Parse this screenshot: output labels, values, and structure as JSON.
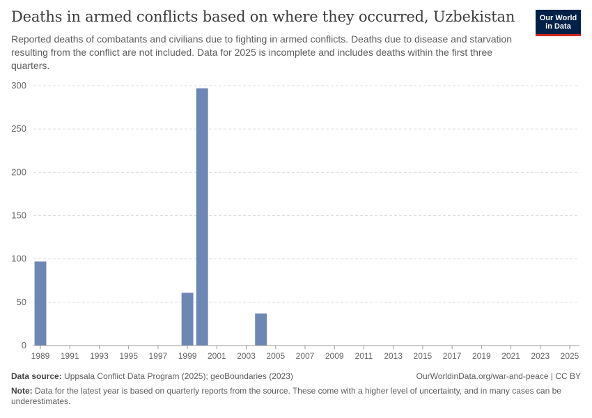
{
  "header": {
    "title": "Deaths in armed conflicts based on where they occurred, Uzbekistan",
    "subtitle": "Reported deaths of combatants and civilians due to fighting in armed conflicts. Deaths due to disease and starvation resulting from the conflict are not included. Data for 2025 is incomplete and includes deaths within the first three quarters."
  },
  "logo": {
    "line1": "Our World",
    "line2": "in Data"
  },
  "footer": {
    "source_label": "Data source:",
    "source_text": "Uppsala Conflict Data Program (2025); geoBoundaries (2023)",
    "url_text": "OurWorldinData.org/war-and-peace | CC BY",
    "note_label": "Note:",
    "note_text": "Data for the latest year is based on quarterly reports from the source. These come with a higher level of uncertainty, and in many cases can be underestimates."
  },
  "colors": {
    "bar": "#6d87b4",
    "grid": "#dddddd",
    "axis": "#999999"
  },
  "chart_data": {
    "type": "bar",
    "title": "Deaths in armed conflicts based on where they occurred, Uzbekistan",
    "xlabel": "",
    "ylabel": "",
    "ylim": [
      0,
      300
    ],
    "y_ticks": [
      0,
      50,
      100,
      150,
      200,
      250,
      300
    ],
    "x_tick_labels": [
      "1989",
      "1991",
      "1993",
      "1995",
      "1997",
      "1999",
      "2001",
      "2003",
      "2005",
      "2007",
      "2009",
      "2011",
      "2013",
      "2015",
      "2017",
      "2019",
      "2021",
      "2023",
      "2025"
    ],
    "categories": [
      "1989",
      "1990",
      "1991",
      "1992",
      "1993",
      "1994",
      "1995",
      "1996",
      "1997",
      "1998",
      "1999",
      "2000",
      "2001",
      "2002",
      "2003",
      "2004",
      "2005",
      "2006",
      "2007",
      "2008",
      "2009",
      "2010",
      "2011",
      "2012",
      "2013",
      "2014",
      "2015",
      "2016",
      "2017",
      "2018",
      "2019",
      "2020",
      "2021",
      "2022",
      "2023",
      "2024",
      "2025"
    ],
    "values": [
      97,
      0,
      0,
      0,
      0,
      0,
      0,
      0,
      0,
      0,
      61,
      297,
      0,
      0,
      0,
      37,
      0,
      0,
      0,
      0,
      0,
      0,
      0,
      0,
      0,
      0,
      0,
      0,
      0,
      0,
      0,
      0,
      0,
      0,
      0,
      0,
      0
    ],
    "grid": true
  }
}
